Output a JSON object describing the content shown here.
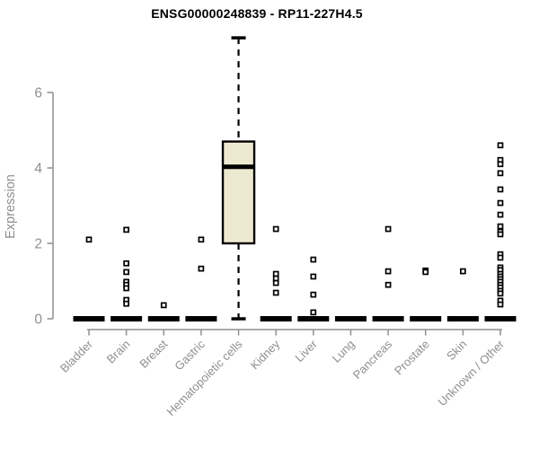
{
  "chart_data": {
    "type": "boxplot",
    "title": "ENSG00000248839 - RP11-227H4.5",
    "ylabel": "Expression",
    "xlabel": "",
    "ylim": [
      0,
      7.6
    ],
    "yticks": [
      0,
      2,
      4,
      6
    ],
    "grid": false,
    "legend": "none",
    "categories": [
      "Bladder",
      "Brain",
      "Breast",
      "Gastric",
      "Hematopoietic cells",
      "Kidney",
      "Liver",
      "Lung",
      "Pancreas",
      "Prostate",
      "Skin",
      "Unknown / Other"
    ],
    "boxes": [
      {
        "category": "Bladder",
        "q1": 0,
        "median": 0,
        "q3": 0,
        "whisker_low": 0,
        "whisker_high": 0,
        "outliers": [
          2.1
        ]
      },
      {
        "category": "Brain",
        "q1": 0,
        "median": 0,
        "q3": 0,
        "whisker_low": 0,
        "whisker_high": 0,
        "outliers": [
          2.36,
          1.47,
          1.24,
          0.98,
          0.9,
          0.81,
          0.5,
          0.4
        ]
      },
      {
        "category": "Breast",
        "q1": 0,
        "median": 0,
        "q3": 0,
        "whisker_low": 0,
        "whisker_high": 0,
        "outliers": [
          0.36
        ]
      },
      {
        "category": "Gastric",
        "q1": 0,
        "median": 0,
        "q3": 0,
        "whisker_low": 0,
        "whisker_high": 0,
        "outliers": [
          2.1,
          1.33
        ]
      },
      {
        "category": "Hematopoietic cells",
        "q1": 2.0,
        "median": 4.03,
        "q3": 4.7,
        "whisker_low": 0,
        "whisker_high": 7.45,
        "outliers": []
      },
      {
        "category": "Kidney",
        "q1": 0,
        "median": 0,
        "q3": 0,
        "whisker_low": 0,
        "whisker_high": 0,
        "outliers": [
          2.38,
          1.19,
          1.07,
          0.95,
          0.69
        ]
      },
      {
        "category": "Liver",
        "q1": 0,
        "median": 0,
        "q3": 0,
        "whisker_low": 0,
        "whisker_high": 0,
        "outliers": [
          1.57,
          1.12,
          0.64,
          0.17
        ]
      },
      {
        "category": "Lung",
        "q1": 0,
        "median": 0,
        "q3": 0,
        "whisker_low": 0,
        "whisker_high": 0,
        "outliers": []
      },
      {
        "category": "Pancreas",
        "q1": 0,
        "median": 0,
        "q3": 0,
        "whisker_low": 0,
        "whisker_high": 0,
        "outliers": [
          2.38,
          1.26,
          0.9
        ]
      },
      {
        "category": "Prostate",
        "q1": 0,
        "median": 0,
        "q3": 0,
        "whisker_low": 0,
        "whisker_high": 0,
        "outliers": [
          1.28,
          1.24
        ]
      },
      {
        "category": "Skin",
        "q1": 0,
        "median": 0,
        "q3": 0,
        "whisker_low": 0,
        "whisker_high": 0,
        "outliers": [
          1.26
        ]
      },
      {
        "category": "Unknown / Other",
        "q1": 0,
        "median": 0,
        "q3": 0,
        "whisker_low": 0,
        "whisker_high": 0,
        "outliers": [
          4.6,
          4.21,
          4.1,
          3.86,
          3.43,
          3.07,
          2.76,
          2.45,
          2.31,
          2.24,
          1.71,
          1.62,
          1.36,
          1.29,
          1.19,
          1.12,
          1.05,
          0.98,
          0.9,
          0.83,
          0.74,
          0.67,
          0.48,
          0.38
        ]
      }
    ],
    "colors": {
      "box_fill": "#ede8d0",
      "box_stroke": "#000000",
      "median": "#000000",
      "whisker": "#000000",
      "outlier_stroke": "#000000",
      "outlier_fill": "#ffffff",
      "axis": "#8f8f8f",
      "tick_label": "#8f8f8f",
      "title": "#000000",
      "background": "#ffffff"
    }
  }
}
